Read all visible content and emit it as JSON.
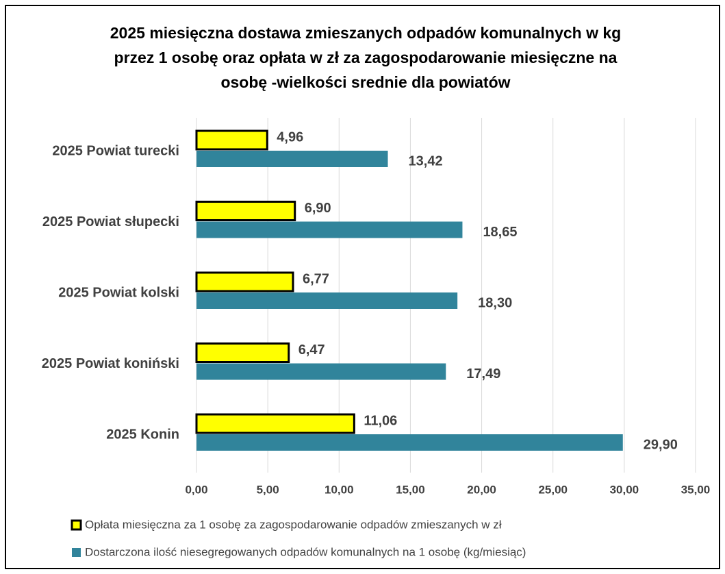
{
  "chart_data": {
    "type": "hbar",
    "title": [
      "2025 miesięczna dostawa zmieszanych odpadów komunalnych w kg",
      "przez 1 osobę  oraz opłata  w zł za zagospodarowanie miesięczne na",
      "osobę -wielkości srednie dla powiatów"
    ],
    "categories": [
      "2025 Powiat turecki",
      "2025 Powiat słupecki",
      "2025 Powiat kolski",
      "2025 Powiat koniński",
      "2025 Konin"
    ],
    "series": [
      {
        "name": "Opłata miesięczna za 1 osobę za zagospodarowanie odpadów zmieszanych w zł",
        "color": "#ffff00",
        "values": [
          4.96,
          6.9,
          6.77,
          6.47,
          11.06
        ],
        "value_labels": [
          "4,96",
          "6,90",
          "6,77",
          "6,47",
          "11,06"
        ]
      },
      {
        "name": "Dostarczona ilość  niesegregowanych odpadów komunalnych na 1 osobę (kg/miesiąc)",
        "color": "#31849b",
        "values": [
          13.42,
          18.65,
          18.3,
          17.49,
          29.9
        ],
        "value_labels": [
          "13,42",
          "18,65",
          "18,30",
          "17,49",
          "29,90"
        ]
      }
    ],
    "xlim": [
      0,
      35
    ],
    "xticks": [
      {
        "value": 0,
        "label": "0,00"
      },
      {
        "value": 5,
        "label": "5,00"
      },
      {
        "value": 10,
        "label": "10,00"
      },
      {
        "value": 15,
        "label": "15,00"
      },
      {
        "value": 20,
        "label": "20,00"
      },
      {
        "value": 25,
        "label": "25,00"
      },
      {
        "value": 30,
        "label": "30,00"
      },
      {
        "value": 35,
        "label": "35,00"
      }
    ],
    "grid": true
  }
}
